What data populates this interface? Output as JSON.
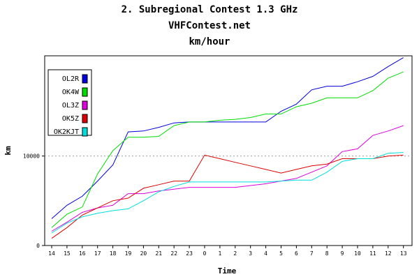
{
  "chart_data": {
    "type": "line",
    "title": "2. Subregional Contest 1.3 GHz",
    "subtitle": "VHFContest.net",
    "subtitle2": "km/hour",
    "xlabel": "Time",
    "ylabel": "km",
    "categories": [
      "14",
      "15",
      "16",
      "17",
      "18",
      "19",
      "20",
      "21",
      "22",
      "23",
      "0",
      "1",
      "2",
      "3",
      "4",
      "5",
      "6",
      "7",
      "8",
      "9",
      "10",
      "11",
      "12",
      "13"
    ],
    "y_ticks": [
      0,
      10000
    ],
    "y_tick_labels": [
      "0",
      "10000"
    ],
    "ylim": [
      0,
      21200
    ],
    "grid": "dotted line at 10000",
    "legend_position": "top-left",
    "series": [
      {
        "name": "OL2R",
        "color": "#0000dd",
        "values": [
          3000,
          4500,
          5500,
          7200,
          9000,
          12700,
          12800,
          13200,
          13700,
          13800,
          13800,
          13800,
          13800,
          13800,
          13800,
          15000,
          15800,
          17400,
          17800,
          17800,
          18300,
          18900,
          20000,
          21000
        ]
      },
      {
        "name": "OK4W",
        "color": "#00dd00",
        "values": [
          2000,
          3500,
          4300,
          8000,
          10600,
          12100,
          12100,
          12200,
          13400,
          13800,
          13800,
          14000,
          14100,
          14300,
          14700,
          14700,
          15500,
          15900,
          16500,
          16500,
          16500,
          17300,
          18700,
          19400
        ]
      },
      {
        "name": "OL3Z",
        "color": "#dd00dd",
        "values": [
          1600,
          2600,
          3700,
          4200,
          4500,
          5800,
          5800,
          6100,
          6300,
          6500,
          6500,
          6500,
          6500,
          6700,
          6900,
          7200,
          7500,
          8200,
          8900,
          10500,
          10800,
          12300,
          12800,
          13400
        ]
      },
      {
        "name": "OK5Z",
        "color": "#dd0000",
        "values": [
          800,
          2000,
          3400,
          4200,
          5000,
          5300,
          6400,
          6800,
          7200,
          7200,
          10100,
          9700,
          9300,
          8900,
          8500,
          8100,
          8500,
          8900,
          9100,
          9700,
          9700,
          9700,
          10000,
          10100
        ]
      },
      {
        "name": "OK2KJT",
        "color": "#00dddd",
        "values": [
          1400,
          2500,
          3200,
          3600,
          3900,
          4100,
          5000,
          6000,
          6600,
          7100,
          7100,
          7100,
          7100,
          7100,
          7100,
          7200,
          7300,
          7300,
          8200,
          9400,
          9700,
          9700,
          10300,
          10400
        ]
      }
    ]
  }
}
